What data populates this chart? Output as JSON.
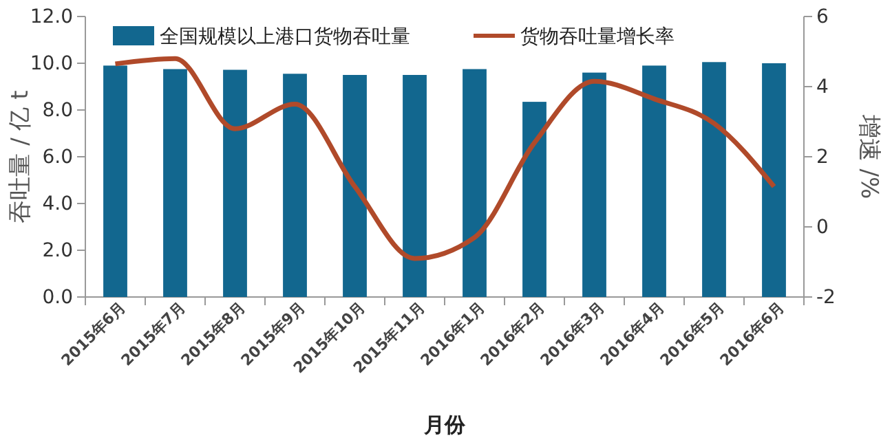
{
  "chart_data": {
    "type": "bar",
    "categories": [
      "2015年6月",
      "2015年7月",
      "2015年8月",
      "2015年9月",
      "2015年10月",
      "2015年11月",
      "2016年1月",
      "2016年2月",
      "2016年3月",
      "2016年4月",
      "2016年5月",
      "2016年6月"
    ],
    "series": [
      {
        "name": "全国规模以上港口货物吞吐量",
        "color": "#12678f",
        "values": [
          9.9,
          9.75,
          9.72,
          9.55,
          9.5,
          9.5,
          9.75,
          8.35,
          9.6,
          9.9,
          10.05,
          10.0
        ]
      },
      {
        "name": "货物吞吐量增长率",
        "type": "line",
        "axis": "y2",
        "color": "#b04a2a",
        "values": [
          4.65,
          4.8,
          2.8,
          3.5,
          1.15,
          -0.9,
          -0.3,
          2.4,
          4.15,
          3.65,
          2.95,
          1.15
        ]
      }
    ],
    "xlabel": "月份",
    "ylabel": "吞吐量 / 亿 t",
    "y2label": "增速 /%",
    "ylim": [
      0,
      12
    ],
    "yticks": [
      {
        "value": 0,
        "label": "0.0"
      },
      {
        "value": 2,
        "label": "2.0"
      },
      {
        "value": 4,
        "label": "4.0"
      },
      {
        "value": 6,
        "label": "6.0"
      },
      {
        "value": 8,
        "label": "8.0"
      },
      {
        "value": 10,
        "label": "10.0"
      },
      {
        "value": 12,
        "label": "12.0"
      }
    ],
    "y2lim": [
      -2,
      6
    ],
    "y2ticks": [
      -2,
      0,
      2,
      4,
      6
    ],
    "legend": "top",
    "grid": false,
    "line_style": "solid",
    "marker": "none"
  }
}
